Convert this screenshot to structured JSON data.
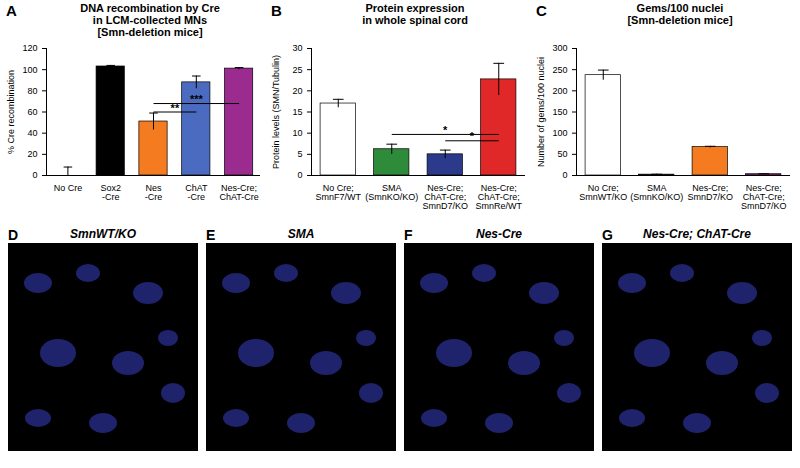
{
  "chart_data": [
    {
      "panel": "A",
      "type": "bar",
      "title": "DNA recombination by Cre",
      "subtitle": "in LCM-collected MNs\n[Smn-deletion mice]",
      "ylabel": "% Cre recombination",
      "categories": [
        "No Cre",
        "Sox2\n-Cre",
        "Nes\n-Cre",
        "ChAT\n-Cre",
        "Nes-Cre;\nChAT-Cre"
      ],
      "values": [
        0,
        103,
        51,
        88,
        101
      ],
      "errors": [
        8,
        1,
        8,
        6,
        1
      ],
      "colors": [
        "#ffffff",
        "#000000",
        "#f47b20",
        "#4a6bbf",
        "#9b2b8f"
      ],
      "ylim": [
        0,
        120
      ],
      "yticks": [
        0,
        20,
        40,
        60,
        80,
        100,
        120
      ],
      "annotations": [
        {
          "from": "Nes\n-Cre",
          "to": "ChAT\n-Cre",
          "y": 60,
          "label": "**"
        },
        {
          "from": "Nes\n-Cre",
          "to": "Nes-Cre;\nChAT-Cre",
          "y": 68,
          "label": "***"
        }
      ]
    },
    {
      "panel": "B",
      "type": "bar",
      "title": "Protein expression",
      "subtitle": "in whole spinal cord",
      "ylabel": "Protein levels (SMN/Tubulin)",
      "categories": [
        "No Cre;\nSmnF7/WT",
        "SMA\n(SmnKO/KO)",
        "Nes-Cre;\nChAT-Cre;\nSmnD7/KO",
        "Nes-Cre;\nChAT-Cre;\nSmnRe/WT"
      ],
      "values": [
        17,
        6.2,
        5,
        22.7
      ],
      "errors": [
        1,
        1.2,
        1,
        3.8
      ],
      "colors": [
        "#ffffff",
        "#2e8b3a",
        "#2b3a8a",
        "#e02828"
      ],
      "ylim": [
        0,
        30
      ],
      "yticks": [
        0,
        5,
        10,
        15,
        20,
        25,
        30
      ],
      "annotations": [
        {
          "from": "SMA\n(SmnKO/KO)",
          "to": "Nes-Cre;\nChAT-Cre;\nSmnRe/WT",
          "y": 9.7,
          "label": "*"
        },
        {
          "from": "Nes-Cre;\nChAT-Cre;\nSmnD7/KO",
          "to": "Nes-Cre;\nChAT-Cre;\nSmnRe/WT",
          "y": 8.2,
          "label": "*"
        }
      ]
    },
    {
      "panel": "C",
      "type": "bar",
      "title": "Gems/100 nuclei",
      "subtitle": "[Smn-deletion mice]",
      "ylabel": "Number of gems/100 nuclei",
      "categories": [
        "No Cre;\nSmnWT/KO",
        "SMA\n(SmnKO/KO)",
        "Nes-Cre;\nSmnD7/KO",
        "Nes-Cre;\nChAT-Cre;\nSmnD7/KO"
      ],
      "values": [
        237,
        2,
        67,
        3
      ],
      "errors": [
        12,
        1,
        2,
        1
      ],
      "colors": [
        "#ffffff",
        "#2e8b3a",
        "#f47b20",
        "#9b2b8f"
      ],
      "ylim": [
        0,
        300
      ],
      "yticks": [
        0,
        50,
        100,
        150,
        200,
        250,
        300
      ]
    }
  ],
  "images": {
    "panels": [
      {
        "panel": "D",
        "label": "SmnWT/KO"
      },
      {
        "panel": "E",
        "label": "SMA"
      },
      {
        "panel": "F",
        "label": "Nes-Cre"
      },
      {
        "panel": "G",
        "label": "Nes-Cre; ChAT-Cre"
      }
    ]
  }
}
